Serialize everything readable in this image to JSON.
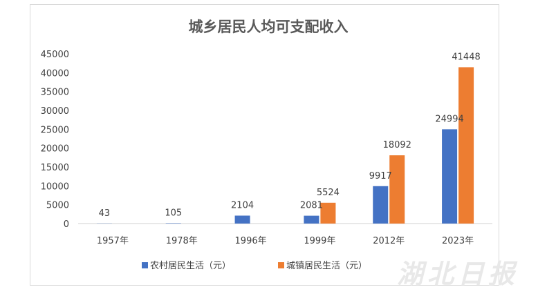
{
  "chart_data": {
    "type": "bar",
    "title": "城乡居民人均可支配收入",
    "categories": [
      "1957年",
      "1978年",
      "1996年",
      "1999年",
      "2012年",
      "2023年"
    ],
    "series": [
      {
        "name": "农村居民生活（元）",
        "values": [
          43,
          105,
          2104,
          2081,
          9917,
          24994
        ],
        "color": "#4472c4"
      },
      {
        "name": "城镇居民生活（元）",
        "values": [
          null,
          null,
          null,
          5524,
          18092,
          41448
        ],
        "color": "#ed7d31"
      }
    ],
    "data_labels": [
      [
        "43",
        "105",
        "2104",
        "2081",
        "9917",
        "24994"
      ],
      [
        "",
        "",
        "",
        "5524",
        "18092",
        "41448"
      ]
    ],
    "yticks": [
      "0",
      "5000",
      "10000",
      "15000",
      "20000",
      "25000",
      "30000",
      "35000",
      "40000",
      "45000"
    ],
    "ylim": [
      0,
      45000
    ],
    "grid": false,
    "legend": "bottom"
  },
  "watermark": {
    "text": "湖北日报",
    "color": "#e6e6e6"
  }
}
